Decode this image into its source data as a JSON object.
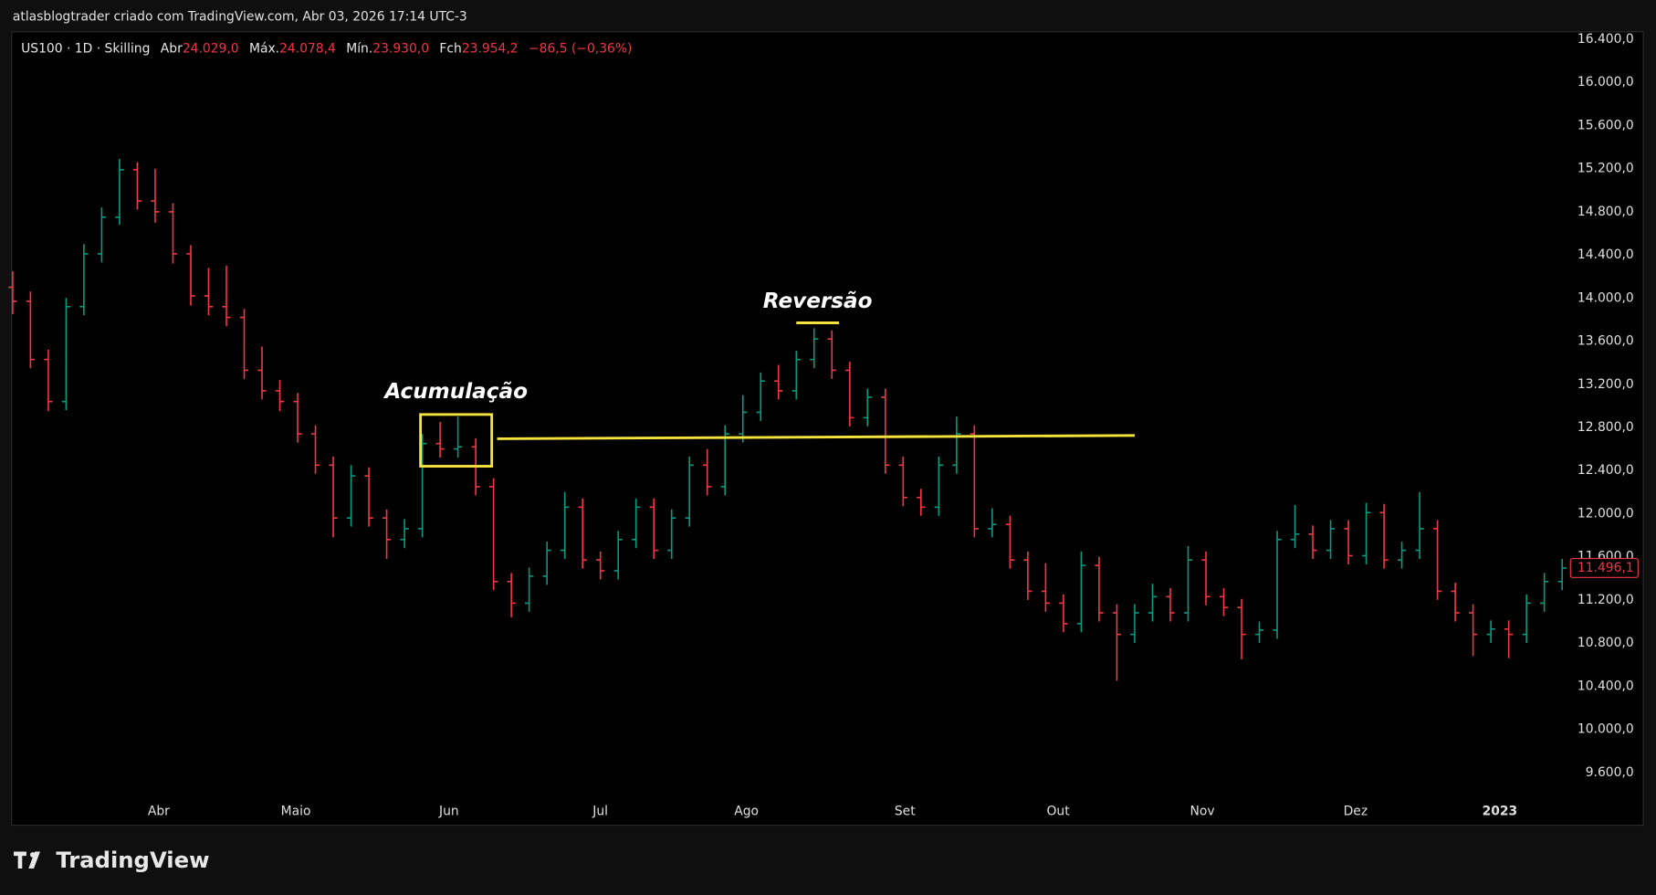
{
  "header": {
    "title": "atlasblogtrader criado com TradingView.com, Abr 03, 2026 17:14 UTC-3"
  },
  "footer": {
    "brand": "TradingView"
  },
  "chart_data": {
    "type": "ohlc",
    "symbol": "US100 · 1D · Skilling",
    "ohlc_legend": [
      {
        "label": "Abr",
        "value": "24.029,0"
      },
      {
        "label": "Máx.",
        "value": "24.078,4"
      },
      {
        "label": "Mín.",
        "value": "23.930,0"
      },
      {
        "label": "Fch",
        "value": "23.954,2"
      }
    ],
    "change": "−86,5 (−0,36%)",
    "up_color": "#089981",
    "down_color": "#f23645",
    "open": [
      14100,
      13970,
      13430,
      13040,
      13920,
      14410,
      14750,
      15190,
      14900,
      14800,
      14410,
      14020,
      13920,
      13820,
      13330,
      13140,
      13040,
      12740,
      12450,
      11960,
      12350,
      11960,
      11760,
      11860,
      12650,
      12600,
      12620,
      12250,
      11370,
      11170,
      11420,
      11660,
      12060,
      11570,
      11470,
      11760,
      12060,
      11660,
      11960,
      12450,
      12250,
      12740,
      12940,
      13230,
      13140,
      13430,
      13620,
      13330,
      12890,
      13080,
      12450,
      12150,
      12060,
      12450,
      12740,
      11860,
      11900,
      11570,
      11280,
      11170,
      10980,
      11520,
      11080,
      10880,
      11080,
      11230,
      11080,
      11570,
      11230,
      11130,
      10880,
      10920,
      11760,
      11810,
      11660,
      11860,
      11610,
      12010,
      11570,
      11660,
      11860,
      11280,
      11080,
      10880,
      10930,
      10880,
      11170,
      11370
    ],
    "high": [
      14250,
      14060,
      13520,
      14000,
      14500,
      14840,
      15290,
      15260,
      15200,
      14880,
      14490,
      14280,
      14300,
      13900,
      13550,
      13240,
      13120,
      12820,
      12530,
      12450,
      12430,
      12040,
      11950,
      12740,
      12850,
      12900,
      12700,
      12330,
      11450,
      11500,
      11740,
      12200,
      12140,
      11650,
      11840,
      12140,
      12140,
      12040,
      12530,
      12600,
      12820,
      13100,
      13310,
      13380,
      13510,
      13720,
      13700,
      13410,
      13160,
      13160,
      12530,
      12230,
      12530,
      12900,
      12820,
      12050,
      11980,
      11650,
      11540,
      11250,
      11650,
      11600,
      11160,
      11160,
      11350,
      11310,
      11700,
      11650,
      11310,
      11210,
      11000,
      11840,
      12080,
      11890,
      11940,
      11940,
      12100,
      12090,
      11740,
      12200,
      11940,
      11360,
      11160,
      11010,
      11010,
      11250,
      11450,
      11580
    ],
    "low": [
      13850,
      13350,
      12950,
      12960,
      13840,
      14330,
      14680,
      14820,
      14700,
      14320,
      13930,
      13840,
      13740,
      13250,
      13060,
      12950,
      12660,
      12370,
      11780,
      11880,
      11880,
      11580,
      11680,
      11780,
      12520,
      12520,
      12170,
      11290,
      11040,
      11090,
      11340,
      11580,
      11490,
      11390,
      11390,
      11680,
      11580,
      11580,
      11880,
      12170,
      12170,
      12660,
      12860,
      13060,
      13060,
      13350,
      13250,
      12810,
      12810,
      12370,
      12070,
      11980,
      11980,
      12370,
      11780,
      11780,
      11490,
      11200,
      11090,
      10900,
      10900,
      11000,
      10450,
      10800,
      11000,
      11000,
      11000,
      11150,
      11050,
      10650,
      10800,
      10840,
      11680,
      11580,
      11580,
      11530,
      11530,
      11490,
      11490,
      11580,
      11200,
      11000,
      10680,
      10800,
      10660,
      10800,
      11090,
      11290
    ],
    "close": [
      13970,
      13430,
      13040,
      13920,
      14410,
      14750,
      15190,
      14900,
      14800,
      14410,
      14020,
      13920,
      13820,
      13330,
      13140,
      13040,
      12740,
      12450,
      11960,
      12350,
      11960,
      11760,
      11860,
      12650,
      12600,
      12620,
      12250,
      11370,
      11170,
      11420,
      11660,
      12060,
      11570,
      11470,
      11760,
      12060,
      11660,
      11960,
      12450,
      12250,
      12740,
      12940,
      13230,
      13140,
      13430,
      13620,
      13330,
      12890,
      13080,
      12450,
      12150,
      12060,
      12450,
      12740,
      11860,
      11900,
      11570,
      11280,
      11170,
      10980,
      11520,
      11080,
      10880,
      11080,
      11230,
      11080,
      11570,
      11230,
      11130,
      10880,
      10920,
      11760,
      11810,
      11660,
      11860,
      11610,
      12010,
      11570,
      11660,
      11860,
      11280,
      11080,
      10880,
      10930,
      10880,
      11170,
      11370,
      11496.1
    ],
    "last_price": 11496.1,
    "last_price_label": "11.496,1",
    "xlim": [
      0,
      91.5
    ],
    "xticks": [
      {
        "value": 8.2,
        "label": "Abr"
      },
      {
        "value": 15.9,
        "label": "Maio"
      },
      {
        "value": 24.5,
        "label": "Jun"
      },
      {
        "value": 33,
        "label": "Jul"
      },
      {
        "value": 41.2,
        "label": "Ago"
      },
      {
        "value": 50.1,
        "label": "Set"
      },
      {
        "value": 58.7,
        "label": "Out"
      },
      {
        "value": 66.8,
        "label": "Nov"
      },
      {
        "value": 75.4,
        "label": "Dez"
      },
      {
        "value": 83.5,
        "label": "2023"
      }
    ],
    "ylim": [
      9120,
      16470
    ],
    "yticks": [
      {
        "value": 9600,
        "label": "9.600,0"
      },
      {
        "value": 10000,
        "label": "10.000,0"
      },
      {
        "value": 10400,
        "label": "10.400,0"
      },
      {
        "value": 10800,
        "label": "10.800,0"
      },
      {
        "value": 11200,
        "label": "11.200,0"
      },
      {
        "value": 11600,
        "label": "11.600,0"
      },
      {
        "value": 12000,
        "label": "12.000,0"
      },
      {
        "value": 12400,
        "label": "12.400,0"
      },
      {
        "value": 12800,
        "label": "12.800,0"
      },
      {
        "value": 13200,
        "label": "13.200,0"
      },
      {
        "value": 13600,
        "label": "13.600,0"
      },
      {
        "value": 14000,
        "label": "14.000,0"
      },
      {
        "value": 14400,
        "label": "14.400,0"
      },
      {
        "value": 14800,
        "label": "14.800,0"
      },
      {
        "value": 15200,
        "label": "15.200,0"
      },
      {
        "value": 15600,
        "label": "15.600,0"
      },
      {
        "value": 16000,
        "label": "16.000,0"
      },
      {
        "value": 16400,
        "label": "16.400,0"
      }
    ],
    "annotations": [
      {
        "text": "Acumulação",
        "box_x": [
          22.9,
          26.9
        ],
        "box_y": [
          12440,
          12920
        ]
      },
      {
        "text": "Reversão",
        "mark_x": [
          44,
          46.4
        ],
        "mark_y": 13770
      },
      {
        "line_x": [
          27.2,
          63
        ],
        "line_y": [
          12695,
          12725
        ]
      }
    ],
    "annotation_color": "#f5e23b"
  }
}
